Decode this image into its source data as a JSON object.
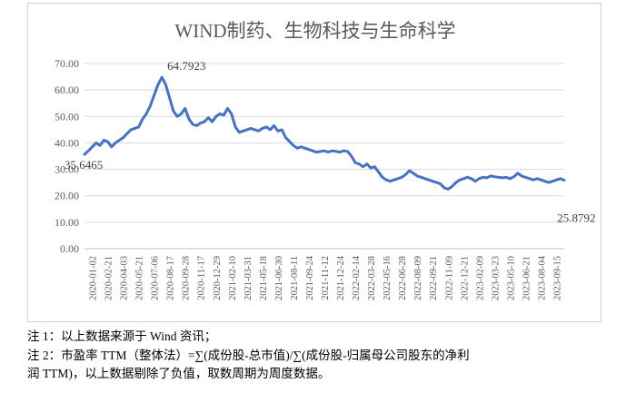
{
  "chart_data": {
    "type": "line",
    "title": "WIND制药、生物科技与生命科学",
    "xlabel": "",
    "ylabel": "",
    "ylim": [
      0,
      70
    ],
    "yticks": [
      "0.00",
      "10.00",
      "20.00",
      "30.00",
      "40.00",
      "50.00",
      "60.00",
      "70.00"
    ],
    "xticks": [
      "2020-01-02",
      "2020-02-21",
      "2020-04-03",
      "2020-05-21",
      "2020-07-06",
      "2020-08-17",
      "2020-09-28",
      "2020-11-17",
      "2020-12-29",
      "2021-02-10",
      "2021-03-31",
      "2021-05-18",
      "2021-06-30",
      "2021-08-11",
      "2021-09-24",
      "2021-11-12",
      "2021-12-24",
      "2022-02-14",
      "2022-03-28",
      "2022-05-16",
      "2022-06-28",
      "2022-08-09",
      "2022-09-21",
      "2022-11-09",
      "2022-12-21",
      "2023-02-09",
      "2023-03-23",
      "2023-05-10",
      "2023-06-21",
      "2023-08-04",
      "2023-09-15"
    ],
    "grid": "horizontal",
    "line_color": "#4472c4",
    "series": [
      {
        "values": [
          35.6465,
          37,
          38.5,
          40,
          39,
          41,
          40.5,
          38.5,
          40,
          41,
          42,
          43.5,
          45,
          45.5,
          46,
          49,
          51,
          54,
          58,
          62,
          64.7923,
          62,
          57,
          52,
          50,
          51,
          53,
          49,
          47,
          46.5,
          47.5,
          48,
          49.5,
          48,
          50,
          51,
          50.5,
          53,
          51,
          46,
          44,
          44.5,
          45,
          45.5,
          45,
          44.5,
          45.5,
          46,
          45,
          46.5,
          44.5,
          45,
          42,
          40.5,
          39,
          38,
          38.5,
          38,
          37.5,
          37,
          36.5,
          36.8,
          37,
          36.5,
          37,
          36.8,
          36.5,
          37,
          36.8,
          35,
          32.5,
          32,
          31,
          32,
          30.5,
          31,
          29,
          27,
          26,
          25.5,
          26,
          26.5,
          27,
          28,
          29.5,
          28.5,
          27.5,
          27,
          26.5,
          26,
          25.5,
          25,
          24.5,
          23,
          22.5,
          23.5,
          25,
          26,
          26.5,
          27,
          26.5,
          25.5,
          26.5,
          27,
          26.8,
          27.5,
          27.2,
          27,
          26.8,
          27,
          26.5,
          27.2,
          28.5,
          27.5,
          27,
          26.5,
          26,
          26.5,
          26,
          25.5,
          25,
          25.5,
          26,
          26.5,
          25.8792
        ]
      }
    ],
    "annotations": [
      {
        "label": "64.7923",
        "index": 20,
        "y": 64.7923
      },
      {
        "label": "35.6465",
        "index": 0,
        "y": 35.6465
      },
      {
        "label": "25.8792",
        "index": 125,
        "y": 25.8792
      }
    ]
  },
  "notes": {
    "note1": "注 1：以上数据来源于 Wind 资讯；",
    "note2_line1": "注 2：市盈率 TTM（整体法）=∑(成份股-总市值)/∑(成份股-归属母公司股东的净利",
    "note2_line2": "润 TTM)，以上数据剔除了负值，取数周期为周度数据。"
  }
}
